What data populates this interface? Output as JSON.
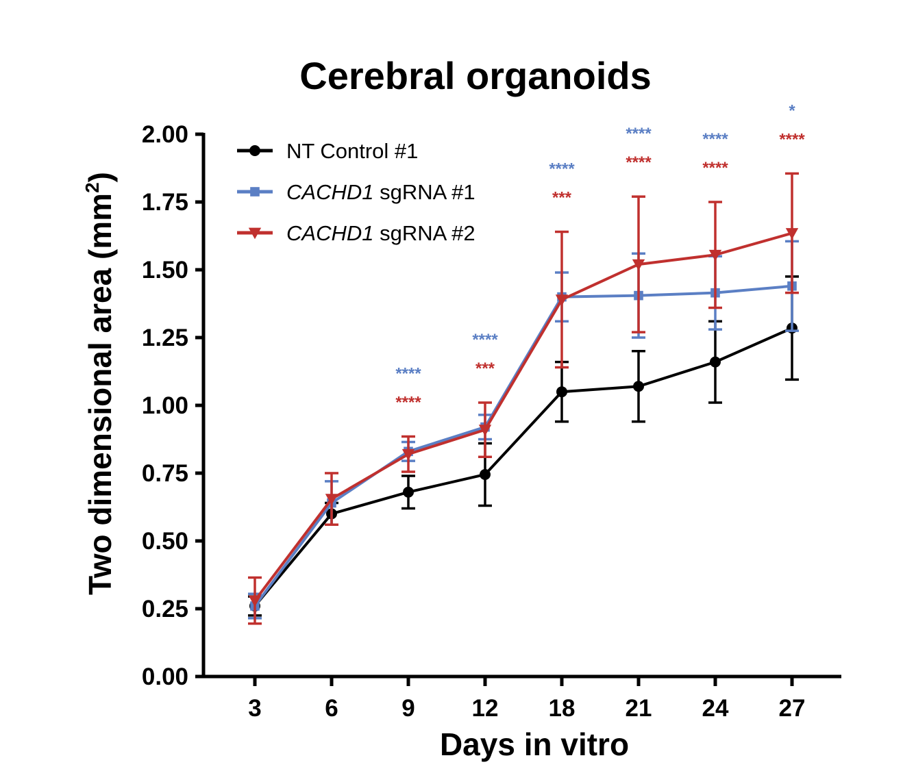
{
  "chart_data": {
    "type": "line",
    "title": "Cerebral organoids",
    "xlabel": "Days in vitro",
    "ylabel": "Two dimensional area (mm",
    "ylabel_sup": "2",
    "ylabel_close": ")",
    "categories": [
      "3",
      "6",
      "9",
      "12",
      "18",
      "21",
      "24",
      "27"
    ],
    "y_ticks": [
      "0.00",
      "0.25",
      "0.50",
      "0.75",
      "1.00",
      "1.25",
      "1.50",
      "1.75",
      "2.00"
    ],
    "ylim": [
      0,
      2
    ],
    "series": [
      {
        "name": "NT Control #1",
        "name_italic": "",
        "name_rest": "NT Control #1",
        "color": "#000000",
        "marker": "circle",
        "values": [
          0.26,
          0.6,
          0.68,
          0.745,
          1.05,
          1.07,
          1.16,
          1.285
        ],
        "errors": [
          0.035,
          0.04,
          0.06,
          0.115,
          0.11,
          0.13,
          0.15,
          0.19
        ]
      },
      {
        "name": "CACHD1 sgRNA #1",
        "name_italic": "CACHD1",
        "name_rest": " sgRNA #1",
        "color": "#5B7FC4",
        "marker": "square",
        "values": [
          0.26,
          0.64,
          0.83,
          0.92,
          1.4,
          1.405,
          1.415,
          1.44
        ],
        "errors": [
          0.045,
          0.08,
          0.035,
          0.045,
          0.09,
          0.155,
          0.135,
          0.165
        ]
      },
      {
        "name": "CACHD1 sgRNA #2",
        "name_italic": "CACHD1",
        "name_rest": " sgRNA #2",
        "color": "#C0302E",
        "marker": "triangle-down",
        "values": [
          0.28,
          0.655,
          0.82,
          0.91,
          1.39,
          1.52,
          1.555,
          1.635
        ],
        "errors": [
          0.085,
          0.095,
          0.065,
          0.1,
          0.25,
          0.25,
          0.195,
          0.22
        ]
      }
    ],
    "significance": {
      "sgRNA1": [
        "",
        "",
        "****",
        "****",
        "****",
        "****",
        "****",
        "*"
      ],
      "sgRNA2": [
        "",
        "",
        "****",
        "***",
        "***",
        "****",
        "****",
        "****"
      ]
    },
    "legend_position": "top-left"
  }
}
